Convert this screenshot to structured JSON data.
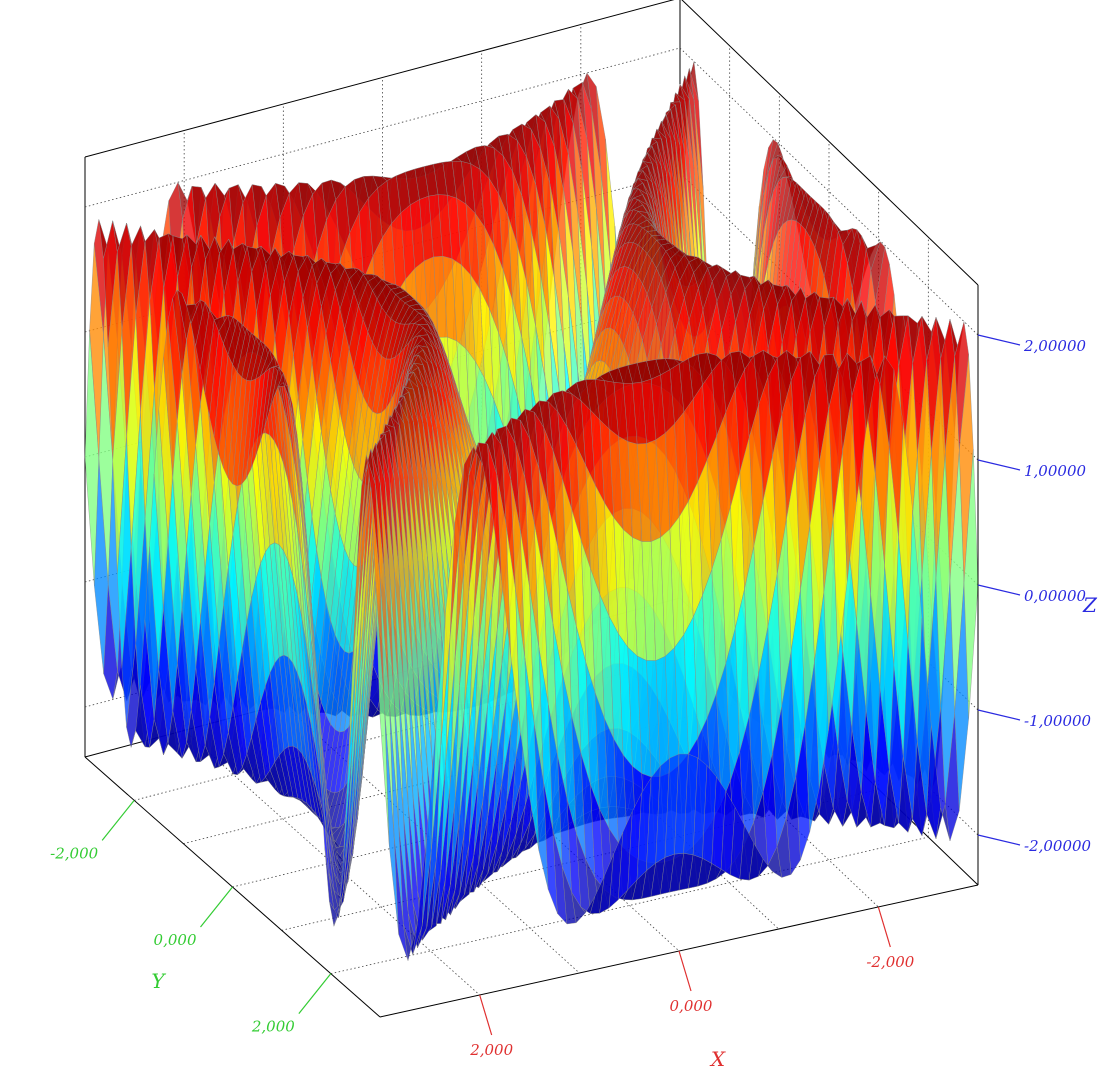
{
  "chart_data": {
    "type": "surface",
    "surface_function": "z = 2*sin(x^2 - y^2)",
    "x_range": [
      -3,
      3
    ],
    "y_range": [
      -3,
      3
    ],
    "z_range": [
      -2.4,
      2.4
    ],
    "grid": true,
    "colormap": "jet",
    "axes": {
      "x": {
        "title": "X",
        "color": "#e03030",
        "ticks": [
          {
            "value": 2,
            "label": "2,000"
          },
          {
            "value": 0,
            "label": "0,000"
          },
          {
            "value": -2,
            "label": "-2,000"
          }
        ]
      },
      "y": {
        "title": "Y",
        "color": "#33cc33",
        "ticks": [
          {
            "value": -2,
            "label": "-2,000"
          },
          {
            "value": 0,
            "label": "0,000"
          },
          {
            "value": 2,
            "label": "2,000"
          }
        ]
      },
      "z": {
        "title": "Z",
        "color": "#2a2ae0",
        "ticks": [
          {
            "value": 2,
            "label": "2,00000"
          },
          {
            "value": 1,
            "label": "1,00000"
          },
          {
            "value": 0,
            "label": "0,00000"
          },
          {
            "value": -1,
            "label": "-1,00000"
          },
          {
            "value": -2,
            "label": "-2,00000"
          }
        ]
      }
    }
  }
}
